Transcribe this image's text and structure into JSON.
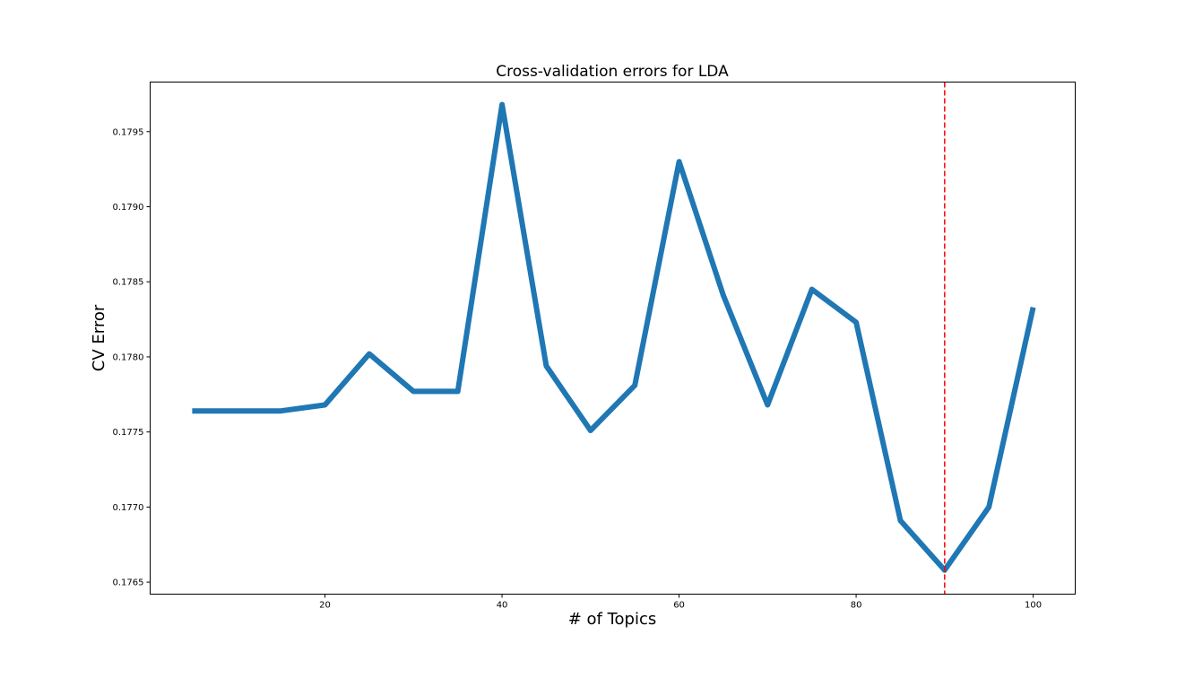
{
  "chart_data": {
    "type": "line",
    "title": "Cross-validation errors for LDA",
    "xlabel": "# of Topics",
    "ylabel": "CV Error",
    "xlim": [
      0.25,
      104.75
    ],
    "ylim": [
      0.17642,
      0.17983
    ],
    "x_ticks": [
      20,
      40,
      60,
      80,
      100
    ],
    "x_tick_labels": [
      "20",
      "40",
      "60",
      "80",
      "100"
    ],
    "y_ticks": [
      0.1765,
      0.177,
      0.1775,
      0.178,
      0.1785,
      0.179,
      0.1795
    ],
    "y_tick_labels": [
      "0.1765",
      "0.1770",
      "0.1775",
      "0.1780",
      "0.1785",
      "0.1790",
      "0.1795"
    ],
    "grid": false,
    "series": [
      {
        "color": "#1f77b4",
        "x": [
          5,
          10,
          15,
          20,
          25,
          30,
          35,
          40,
          45,
          50,
          55,
          60,
          65,
          70,
          75,
          80,
          85,
          90,
          95,
          100
        ],
        "values": [
          0.17764,
          0.17764,
          0.17764,
          0.17768,
          0.17802,
          0.17777,
          0.17777,
          0.17968,
          0.17794,
          0.17751,
          0.17781,
          0.1793,
          0.17841,
          0.17768,
          0.17845,
          0.17823,
          0.17691,
          0.17658,
          0.177,
          0.17833
        ]
      }
    ],
    "vline": {
      "x": 90,
      "color": "#ff0000",
      "style": "dashed"
    }
  }
}
